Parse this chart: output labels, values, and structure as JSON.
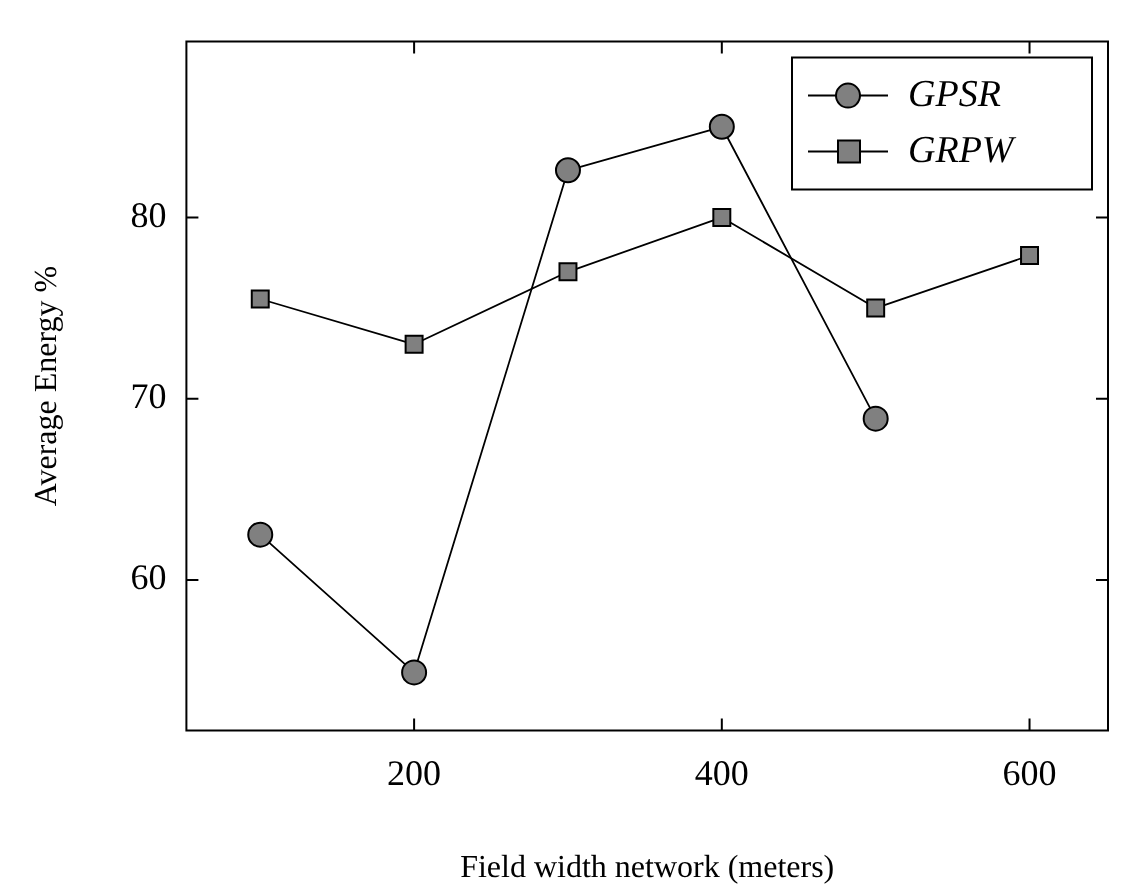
{
  "chart_data": {
    "type": "line",
    "xlabel": "Field width network (meters)",
    "ylabel": "Average Energy %",
    "x": [
      100,
      200,
      300,
      400,
      500,
      600
    ],
    "series": [
      {
        "name": "GPSR",
        "color": "#808080",
        "marker": "circle",
        "values": [
          62.5,
          54.9,
          82.6,
          85.0,
          68.9,
          null
        ]
      },
      {
        "name": "GRPW",
        "color": "#808080",
        "marker": "square",
        "values": [
          75.5,
          73.0,
          77.0,
          80.0,
          75.0,
          77.9
        ]
      }
    ],
    "xlim": [
      52,
      651
    ],
    "xticks": [
      200,
      400,
      600
    ],
    "ylim": [
      51.7,
      89.7
    ],
    "yticks": [
      60,
      70,
      80
    ],
    "legend": "top right",
    "grid": false
  }
}
